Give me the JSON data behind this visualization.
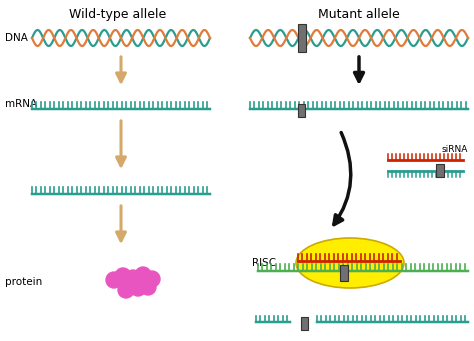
{
  "title_left": "Wild-type allele",
  "title_right": "Mutant allele",
  "label_dna": "DNA",
  "label_mrna": "mRNA",
  "label_protein": "protein",
  "label_risc": "RISC",
  "label_sirna": "siRNA",
  "color_teal": "#2a9d8f",
  "color_orange_dna": "#e07b39",
  "color_arrow_tan": "#d4a96a",
  "color_arrow_black": "#111111",
  "color_protein": "#e855c0",
  "color_yellow": "#ffee00",
  "color_red": "#cc2200",
  "color_green_stripe": "#4caf50",
  "color_mutation": "#707070",
  "color_mutation_dark": "#333333",
  "bg_color": "#ffffff"
}
